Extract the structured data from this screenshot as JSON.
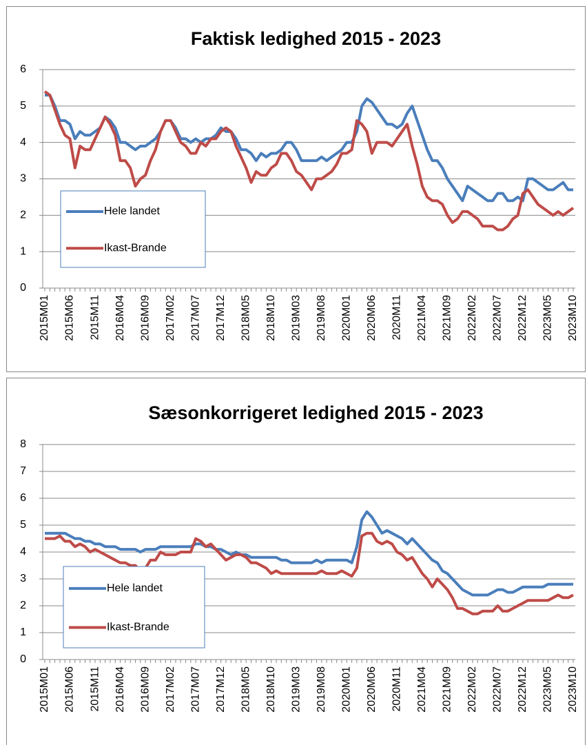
{
  "chart_data": [
    {
      "type": "line",
      "title": "Faktisk ledighed 2015 - 2023",
      "categories": [
        "2015M01",
        null,
        null,
        null,
        null,
        "2015M06",
        null,
        null,
        null,
        null,
        "2015M11",
        null,
        null,
        null,
        null,
        "2016M04",
        null,
        null,
        null,
        null,
        "2016M09",
        null,
        null,
        null,
        null,
        "2017M02",
        null,
        null,
        null,
        null,
        "2017M07",
        null,
        null,
        null,
        null,
        "2017M12",
        null,
        null,
        null,
        null,
        "2018M05",
        null,
        null,
        null,
        null,
        "2018M10",
        null,
        null,
        null,
        null,
        "2019M03",
        null,
        null,
        null,
        null,
        "2019M08",
        null,
        null,
        null,
        null,
        "2020M01",
        null,
        null,
        null,
        null,
        "2020M06",
        null,
        null,
        null,
        null,
        "2020M11",
        null,
        null,
        null,
        null,
        "2021M04",
        null,
        null,
        null,
        null,
        "2021M09",
        null,
        null,
        null,
        null,
        "2022M02",
        null,
        null,
        null,
        null,
        "2022M07",
        null,
        null,
        null,
        null,
        "2022M12",
        null,
        null,
        null,
        null,
        "2023M05",
        null,
        null,
        null,
        null,
        "2023M10"
      ],
      "series": [
        {
          "name": "Hele landet",
          "color": "#4a7ebb",
          "values": [
            5.3,
            5.3,
            5.0,
            4.6,
            4.6,
            4.5,
            4.1,
            4.3,
            4.2,
            4.2,
            4.3,
            4.4,
            4.7,
            4.6,
            4.4,
            4.0,
            4.0,
            3.9,
            3.8,
            3.9,
            3.9,
            4.0,
            4.1,
            4.3,
            4.6,
            4.6,
            4.4,
            4.1,
            4.1,
            4.0,
            4.1,
            4.0,
            4.1,
            4.1,
            4.2,
            4.4,
            4.3,
            4.3,
            4.1,
            3.8,
            3.8,
            3.7,
            3.5,
            3.7,
            3.6,
            3.7,
            3.7,
            3.8,
            4.0,
            4.0,
            3.8,
            3.5,
            3.5,
            3.5,
            3.5,
            3.6,
            3.5,
            3.6,
            3.7,
            3.8,
            4.0,
            4.0,
            4.3,
            5.0,
            5.2,
            5.1,
            4.9,
            4.7,
            4.5,
            4.5,
            4.4,
            4.5,
            4.8,
            5.0,
            4.6,
            4.2,
            3.8,
            3.5,
            3.5,
            3.3,
            3.0,
            2.8,
            2.6,
            2.4,
            2.8,
            2.7,
            2.6,
            2.5,
            2.4,
            2.4,
            2.6,
            2.6,
            2.4,
            2.4,
            2.5,
            2.4,
            3.0,
            3.0,
            2.9,
            2.8,
            2.7,
            2.7,
            2.8,
            2.9,
            2.7,
            2.7
          ]
        },
        {
          "name": "Ikast-Brande",
          "color": "#be4b48",
          "values": [
            5.4,
            5.3,
            4.9,
            4.5,
            4.2,
            4.1,
            3.3,
            3.9,
            3.8,
            3.8,
            4.1,
            4.4,
            4.7,
            4.5,
            4.2,
            3.5,
            3.5,
            3.3,
            2.8,
            3.0,
            3.1,
            3.5,
            3.8,
            4.3,
            4.6,
            4.6,
            4.3,
            4.0,
            3.9,
            3.7,
            3.7,
            4.0,
            3.9,
            4.1,
            4.1,
            4.3,
            4.4,
            4.3,
            3.9,
            3.6,
            3.3,
            2.9,
            3.2,
            3.1,
            3.1,
            3.3,
            3.4,
            3.7,
            3.7,
            3.5,
            3.2,
            3.1,
            2.9,
            2.7,
            3.0,
            3.0,
            3.1,
            3.2,
            3.4,
            3.7,
            3.7,
            3.8,
            4.6,
            4.5,
            4.3,
            3.7,
            4.0,
            4.0,
            4.0,
            3.9,
            4.1,
            4.3,
            4.5,
            3.9,
            3.4,
            2.8,
            2.5,
            2.4,
            2.4,
            2.3,
            2.0,
            1.8,
            1.9,
            2.1,
            2.1,
            2.0,
            1.9,
            1.7,
            1.7,
            1.7,
            1.6,
            1.6,
            1.7,
            1.9,
            2.0,
            2.6,
            2.7,
            2.5,
            2.3,
            2.2,
            2.1,
            2.0,
            2.1,
            2.0,
            2.1,
            2.2
          ]
        }
      ],
      "ylim": [
        0,
        6
      ],
      "yticks": [
        0,
        1,
        2,
        3,
        4,
        5,
        6
      ],
      "grid": true,
      "legend": "lower left"
    },
    {
      "type": "line",
      "title": "Sæsonkorrigeret ledighed 2015 - 2023",
      "categories": [
        "2015M01",
        null,
        null,
        null,
        null,
        "2015M06",
        null,
        null,
        null,
        null,
        "2015M11",
        null,
        null,
        null,
        null,
        "2016M04",
        null,
        null,
        null,
        null,
        "2016M09",
        null,
        null,
        null,
        null,
        "2017M02",
        null,
        null,
        null,
        null,
        "2017M07",
        null,
        null,
        null,
        null,
        "2017M12",
        null,
        null,
        null,
        null,
        "2018M05",
        null,
        null,
        null,
        null,
        "2018M10",
        null,
        null,
        null,
        null,
        "2019M03",
        null,
        null,
        null,
        null,
        "2019M08",
        null,
        null,
        null,
        null,
        "2020M01",
        null,
        null,
        null,
        null,
        "2020M06",
        null,
        null,
        null,
        null,
        "2020M11",
        null,
        null,
        null,
        null,
        "2021M04",
        null,
        null,
        null,
        null,
        "2021M09",
        null,
        null,
        null,
        null,
        "2022M02",
        null,
        null,
        null,
        null,
        "2022M07",
        null,
        null,
        null,
        null,
        "2022M12",
        null,
        null,
        null,
        null,
        "2023M05",
        null,
        null,
        null,
        null,
        "2023M10"
      ],
      "series": [
        {
          "name": "Hele landet",
          "color": "#4a7ebb",
          "values": [
            4.7,
            4.7,
            4.7,
            4.7,
            4.7,
            4.6,
            4.5,
            4.5,
            4.4,
            4.4,
            4.3,
            4.3,
            4.2,
            4.2,
            4.2,
            4.1,
            4.1,
            4.1,
            4.1,
            4.0,
            4.1,
            4.1,
            4.1,
            4.2,
            4.2,
            4.2,
            4.2,
            4.2,
            4.2,
            4.2,
            4.3,
            4.3,
            4.2,
            4.2,
            4.1,
            4.1,
            4.0,
            3.9,
            4.0,
            3.9,
            3.9,
            3.8,
            3.8,
            3.8,
            3.8,
            3.8,
            3.8,
            3.7,
            3.7,
            3.6,
            3.6,
            3.6,
            3.6,
            3.6,
            3.7,
            3.6,
            3.7,
            3.7,
            3.7,
            3.7,
            3.7,
            3.6,
            4.2,
            5.2,
            5.5,
            5.3,
            5.0,
            4.7,
            4.8,
            4.7,
            4.6,
            4.5,
            4.3,
            4.5,
            4.3,
            4.1,
            3.9,
            3.7,
            3.6,
            3.3,
            3.2,
            3.0,
            2.8,
            2.6,
            2.5,
            2.4,
            2.4,
            2.4,
            2.4,
            2.5,
            2.6,
            2.6,
            2.5,
            2.5,
            2.6,
            2.7,
            2.7,
            2.7,
            2.7,
            2.7,
            2.8,
            2.8,
            2.8,
            2.8,
            2.8,
            2.8
          ]
        },
        {
          "name": "Ikast-Brande",
          "color": "#be4b48",
          "values": [
            4.5,
            4.5,
            4.5,
            4.6,
            4.4,
            4.4,
            4.2,
            4.3,
            4.2,
            4.0,
            4.1,
            4.0,
            3.9,
            3.8,
            3.7,
            3.6,
            3.6,
            3.5,
            3.5,
            3.3,
            3.4,
            3.7,
            3.7,
            4.0,
            3.9,
            3.9,
            3.9,
            4.0,
            4.0,
            4.0,
            4.5,
            4.4,
            4.2,
            4.3,
            4.1,
            3.9,
            3.7,
            3.8,
            3.9,
            3.9,
            3.8,
            3.6,
            3.6,
            3.5,
            3.4,
            3.2,
            3.3,
            3.2,
            3.2,
            3.2,
            3.2,
            3.2,
            3.2,
            3.2,
            3.2,
            3.3,
            3.2,
            3.2,
            3.2,
            3.3,
            3.2,
            3.1,
            3.4,
            4.6,
            4.7,
            4.7,
            4.4,
            4.3,
            4.4,
            4.3,
            4.0,
            3.9,
            3.7,
            3.8,
            3.5,
            3.2,
            3.0,
            2.7,
            3.0,
            2.8,
            2.6,
            2.3,
            1.9,
            1.9,
            1.8,
            1.7,
            1.7,
            1.8,
            1.8,
            1.8,
            2.0,
            1.8,
            1.8,
            1.9,
            2.0,
            2.1,
            2.2,
            2.2,
            2.2,
            2.2,
            2.2,
            2.3,
            2.4,
            2.3,
            2.3,
            2.4
          ]
        }
      ],
      "ylim": [
        0,
        8
      ],
      "yticks": [
        0,
        1,
        2,
        3,
        4,
        5,
        6,
        7,
        8
      ],
      "grid": true,
      "legend": "lower left"
    }
  ]
}
